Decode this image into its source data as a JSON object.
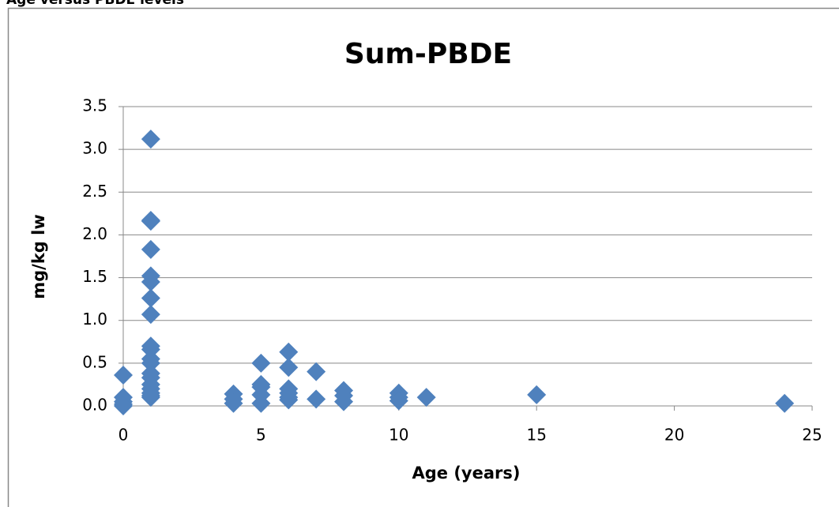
{
  "heading": "Age versus PBDE levels",
  "chart_data": {
    "type": "scatter",
    "title": "Sum-PBDE",
    "x_label": "Age (years)",
    "y_label": "mg/kg lw",
    "series": [
      {
        "color": "#4f81bd",
        "x": [
          0,
          0,
          0,
          0,
          0,
          1,
          1,
          1,
          1,
          1,
          1,
          1,
          1,
          1,
          1,
          1,
          1,
          1,
          1,
          1,
          1,
          1,
          1,
          1,
          4,
          4,
          4,
          5,
          5,
          5,
          5,
          5,
          6,
          6,
          6,
          6,
          6,
          6,
          7,
          7,
          8,
          8,
          8,
          10,
          10,
          10,
          11,
          15,
          24
        ],
        "values": [
          0.36,
          0.1,
          0.05,
          0.02,
          0.0,
          3.12,
          2.17,
          2.16,
          1.83,
          1.52,
          1.45,
          1.26,
          1.07,
          0.7,
          0.66,
          0.55,
          0.5,
          0.38,
          0.33,
          0.25,
          0.2,
          0.15,
          0.12,
          0.1,
          0.14,
          0.08,
          0.03,
          0.5,
          0.25,
          0.22,
          0.13,
          0.03,
          0.63,
          0.45,
          0.2,
          0.15,
          0.1,
          0.07,
          0.4,
          0.08,
          0.18,
          0.12,
          0.05,
          0.15,
          0.1,
          0.06,
          0.1,
          0.13,
          0.03
        ]
      }
    ],
    "xlim": [
      0,
      25
    ],
    "xticks": [
      0,
      5,
      10,
      15,
      20,
      25
    ],
    "ylim": [
      0,
      3.5
    ],
    "yticks": [
      {
        "value": 0,
        "label": "0.0"
      },
      0.5,
      {
        "value": 1,
        "label": "1.0"
      },
      1.5,
      {
        "value": 2,
        "label": "2.0"
      },
      2.5,
      {
        "value": 3,
        "label": "3.0"
      },
      3.5
    ],
    "grid": true
  }
}
